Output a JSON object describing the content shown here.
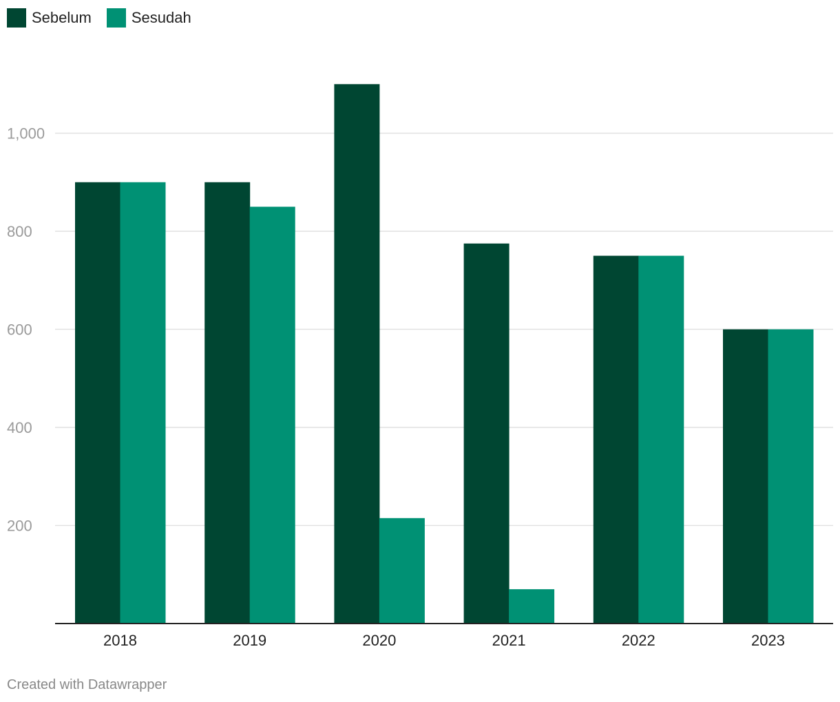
{
  "chart_data": {
    "type": "bar",
    "categories": [
      "2018",
      "2019",
      "2020",
      "2021",
      "2022",
      "2023"
    ],
    "series": [
      {
        "name": "Sebelum",
        "color": "#004632",
        "values": [
          900,
          900,
          1100,
          775,
          750,
          600
        ]
      },
      {
        "name": "Sesudah",
        "color": "#009174",
        "values": [
          900,
          850,
          215,
          70,
          750,
          600
        ]
      }
    ],
    "ylim": [
      0,
      1100
    ],
    "yticks": [
      200,
      400,
      600,
      800,
      1000
    ],
    "ytick_labels": [
      "200",
      "400",
      "600",
      "800",
      "1,000"
    ],
    "grid": true,
    "legend_position": "top-left"
  },
  "footer": {
    "credit": "Created with Datawrapper"
  }
}
